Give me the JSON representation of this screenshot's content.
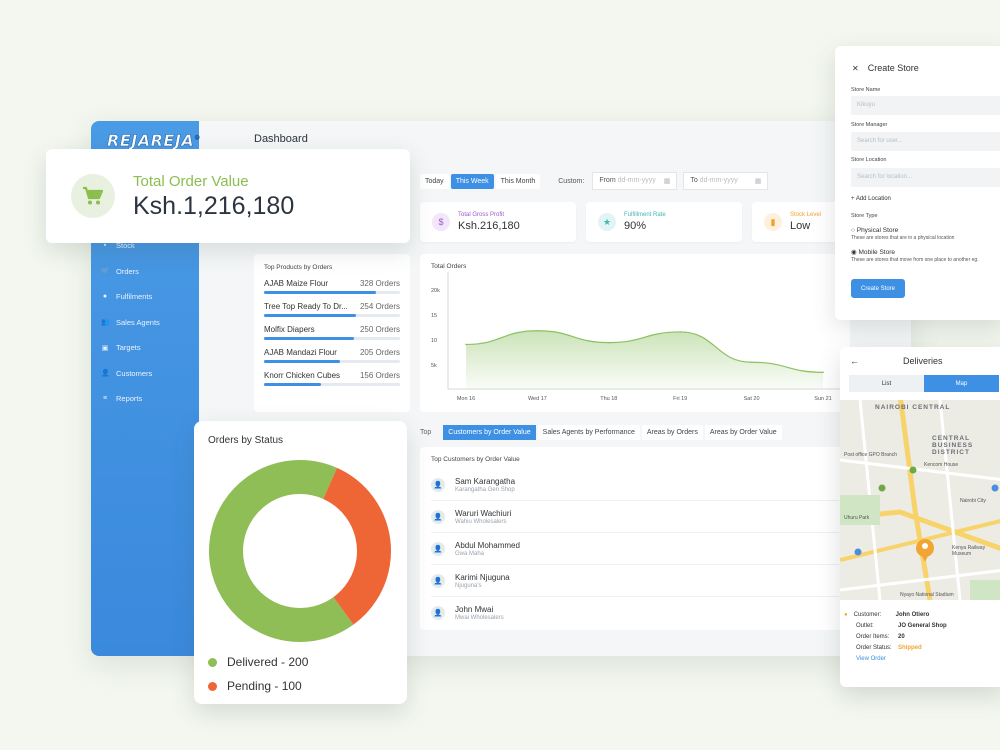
{
  "dashboard": {
    "logo": "REJAREJA",
    "logo_mark": "®",
    "title": "Dashboard",
    "nav": [
      {
        "label": "Stock",
        "icon": "box-icon",
        "glyph": "▪"
      },
      {
        "label": "Orders",
        "icon": "cart-icon",
        "glyph": "🛒"
      },
      {
        "label": "Fulfilments",
        "icon": "truck-icon",
        "glyph": "●"
      },
      {
        "label": "Sales Agents",
        "icon": "agents-icon",
        "glyph": "👥"
      },
      {
        "label": "Targets",
        "icon": "target-icon",
        "glyph": "▣"
      },
      {
        "label": "Customers",
        "icon": "customer-icon",
        "glyph": "👤"
      },
      {
        "label": "Reports",
        "icon": "report-icon",
        "glyph": "≡"
      }
    ],
    "filters": {
      "today": "Today",
      "this_week": "This Week",
      "this_month": "This Month",
      "custom_label": "Custom:",
      "from_label": "From",
      "from_placeholder": "dd-mm-yyyy",
      "to_label": "To",
      "to_placeholder": "dd-mm-yyyy"
    },
    "stats": [
      {
        "label": "Total Gross Profit",
        "value": "Ksh.216,180",
        "color": "#9b59d0",
        "icon": "coin-icon"
      },
      {
        "label": "Fulfillment Rate",
        "value": "90%",
        "color": "#3fb8b0",
        "icon": "star-icon"
      },
      {
        "label": "Stock Level",
        "value": "Low",
        "color": "#f0a22e",
        "icon": "bag-icon"
      }
    ],
    "top_products": {
      "title": "Top Products by Orders",
      "items": [
        {
          "name": "AJAB Maize Flour",
          "orders": "328 Orders",
          "fill": 0.82
        },
        {
          "name": "Tree Top Ready To Dr...",
          "orders": "254 Orders",
          "fill": 0.68
        },
        {
          "name": "Molfix Diapers",
          "orders": "250 Orders",
          "fill": 0.66
        },
        {
          "name": "AJAB Mandazi Flour",
          "orders": "205 Orders",
          "fill": 0.56
        },
        {
          "name": "Knorr Chicken Cubes",
          "orders": "156 Orders",
          "fill": 0.42
        }
      ]
    },
    "tabs": {
      "lead": "Top",
      "items": [
        "Customers by Order Value",
        "Sales Agents by Performance",
        "Areas by Orders",
        "Areas by Order Value"
      ]
    },
    "customers": {
      "title": "Top Customers by Order Value",
      "items": [
        {
          "name": "Sam Karangatha",
          "sub": "Karangatha Gen Shop"
        },
        {
          "name": "Waruri Wachiuri",
          "sub": "Wahiu Wholesalers"
        },
        {
          "name": "Abdul Mohammed",
          "sub": "Gwa Maha"
        },
        {
          "name": "Karimi Njuguna",
          "sub": "Njuguna's"
        },
        {
          "name": "John Mwai",
          "sub": "Mwai Wholesalers"
        }
      ]
    }
  },
  "chart_data": {
    "type": "area",
    "title": "Total Orders",
    "categories": [
      "Mon 16",
      "Wed 17",
      "Thu 18",
      "Fri 19",
      "Sat 20",
      "Sun 21"
    ],
    "y_ticks": [
      "20k",
      "15",
      "10",
      "5k"
    ],
    "series": [
      {
        "values": [
          10.5,
          12.8,
          10.8,
          12.6,
          7.5,
          5.8
        ]
      }
    ],
    "ylim": [
      3,
      21
    ],
    "grid": false,
    "color": "#8cc162"
  },
  "total_order_value": {
    "label": "Total Order Value",
    "value": "Ksh.1,216,180"
  },
  "orders_by_status": {
    "title": "Orders by Status",
    "chart_data": {
      "type": "pie",
      "slices": [
        {
          "label": "Delivered",
          "value": 200,
          "color": "#8fbd56"
        },
        {
          "label": "Pending",
          "value": 100,
          "color": "#ee6636"
        }
      ]
    },
    "legend": [
      "Delivered - 200",
      "Pending - 100"
    ]
  },
  "create_store": {
    "title": "Create Store",
    "store_name_label": "Store Name",
    "store_name_value": "Kikuyu",
    "manager_label": "Store Manager",
    "manager_placeholder": "Search for user...",
    "location_label": "Store Location",
    "location_placeholder": "Search for location...",
    "add_location": "Add Location",
    "store_type_label": "Store Type",
    "physical": "Physical Store",
    "physical_desc": "These are stores that are in a physical location",
    "mobile": "Mobile Store",
    "mobile_desc": "These are stores that move from one place to another eg.",
    "button": "Create Store"
  },
  "deliveries": {
    "title": "Deliveries",
    "tab_list": "List",
    "tab_map": "Map",
    "map_labels": [
      "NAIROBI CENTRAL",
      "CENTRAL BUSINESS DISTRICT",
      "Post office GPO Branch",
      "Kencom House",
      "Uhuru Park",
      "Nairobi City",
      "Kenya Railway Museum",
      "Nyayo National Stadium"
    ],
    "customer_label": "Customer:",
    "customer": "John Otiero",
    "outlet_label": "Outlet:",
    "outlet": "JO General Shop",
    "items_label": "Order Items:",
    "items": "20",
    "status_label": "Order Status:",
    "status": "Shipped",
    "view_order": "View Order"
  }
}
